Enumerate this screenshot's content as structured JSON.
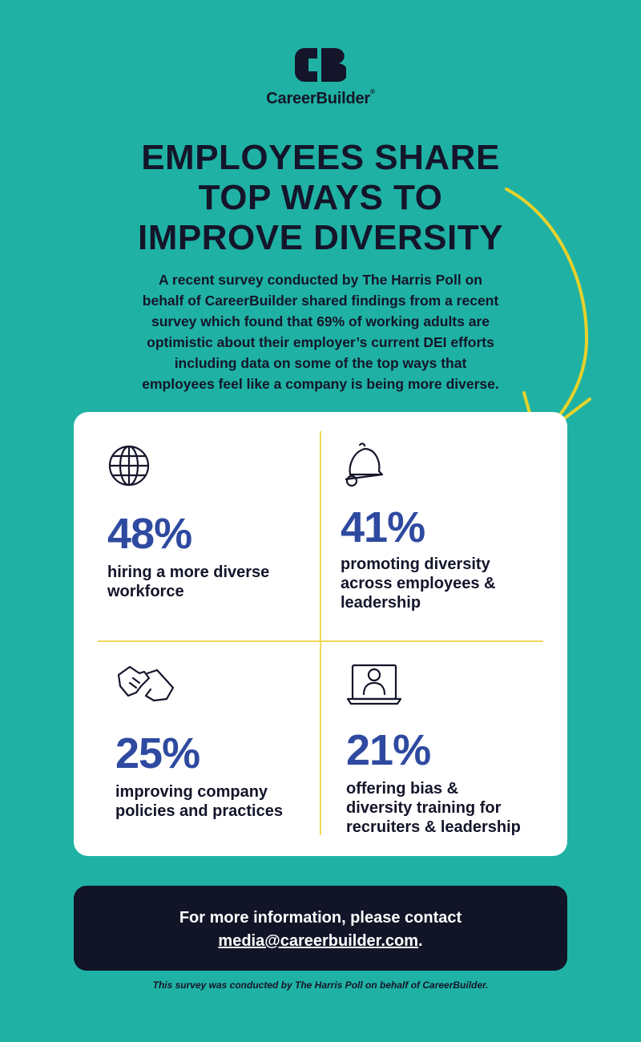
{
  "brand": {
    "name": "CareerBuilder",
    "registered_mark": "®",
    "logo_icon": "cb-logo-icon"
  },
  "headline": {
    "lines": [
      "EMPLOYEES SHARE",
      "TOP WAYS TO",
      "IMPROVE DIVERSITY"
    ]
  },
  "intro": {
    "lines": [
      "A recent survey conducted by The Harris Poll on",
      "behalf of CareerBuilder shared findings from a recent",
      "survey which found that 69% of working adults are",
      "optimistic about their employer’s current DEI efforts",
      "including data on some of the top ways that",
      "employees feel like a company is being more diverse."
    ]
  },
  "stats": [
    {
      "icon": "globe-icon",
      "percent": "48%",
      "lines": [
        "hiring a more diverse",
        "workforce"
      ]
    },
    {
      "icon": "bell-icon",
      "percent": "41%",
      "lines": [
        "promoting diversity",
        "across employees &",
        "leadership"
      ]
    },
    {
      "icon": "handshake-icon",
      "percent": "25%",
      "lines": [
        "improving company",
        "policies and practices"
      ]
    },
    {
      "icon": "laptop-user-icon",
      "percent": "21%",
      "lines": [
        "offering bias &",
        "diversity training for",
        "recruiters & leadership"
      ]
    }
  ],
  "footer": {
    "line1": "For more information, please contact",
    "email": "media@careerbuilder.com",
    "suffix": "."
  },
  "footnote": "This survey was conducted by The Harris Poll on behalf of CareerBuilder.",
  "colors": {
    "background": "#1fb2a4",
    "navy": "#14152a",
    "accent_blue": "#2e4aa0",
    "divider_yellow": "#f1d85a",
    "arrow_yellow": "#e8d22a"
  }
}
